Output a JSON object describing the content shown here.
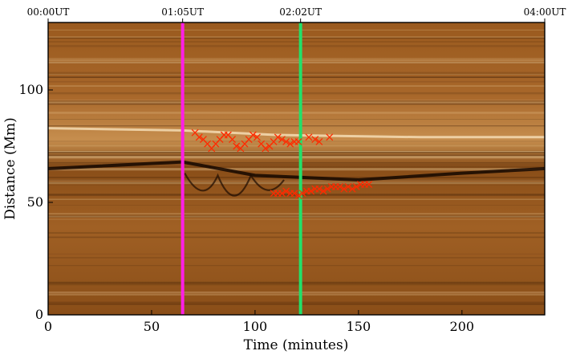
{
  "chart_data": {
    "type": "scatter",
    "title": "",
    "xlabel": "Time (minutes)",
    "ylabel": "Distance (Mm)",
    "xlim": [
      0,
      240
    ],
    "ylim": [
      0,
      130
    ],
    "x_ticks": [
      0,
      50,
      100,
      150,
      200
    ],
    "x_tick_labels": [
      "0",
      "50",
      "100",
      "150",
      "200"
    ],
    "y_ticks": [
      0,
      50,
      100
    ],
    "y_tick_labels": [
      "0",
      "50",
      "100"
    ],
    "top_axis": {
      "ticks": [
        0,
        65,
        122,
        240
      ],
      "labels": [
        "00:00UT",
        "01:05UT",
        "02:02UT",
        "04:00UT"
      ]
    },
    "background": "time-distance image (brown colormap)",
    "vertical_lines": [
      {
        "x": 65,
        "color": "#ff1fe6"
      },
      {
        "x": 122,
        "color": "#22e06a"
      }
    ],
    "grid": false,
    "legend": "none",
    "series": [
      {
        "marker": "x",
        "color": "#ff2a00",
        "x": [
          71,
          73,
          75,
          77,
          79,
          81,
          83,
          85,
          87,
          89,
          91,
          93,
          95,
          97,
          99,
          101,
          103,
          105,
          107,
          109,
          111,
          113,
          115,
          117,
          119,
          121,
          126,
          129,
          131,
          136
        ],
        "y": [
          81,
          79,
          78,
          76,
          74,
          76,
          78,
          80,
          80,
          78,
          75,
          74,
          76,
          78,
          80,
          79,
          76,
          74,
          75,
          77,
          79,
          78,
          77,
          76,
          77,
          77,
          79,
          78,
          77,
          79
        ]
      },
      {
        "marker": "x",
        "color": "#ff2a00",
        "x": [
          109,
          111,
          113,
          115,
          117,
          119,
          121,
          123,
          125,
          127,
          129,
          131,
          133,
          135,
          137,
          139,
          141,
          143,
          145,
          147,
          149,
          151,
          153,
          155
        ],
        "y": [
          54,
          54,
          54,
          55,
          54,
          54,
          53,
          54,
          55,
          55,
          56,
          56,
          55,
          56,
          57,
          57,
          57,
          56,
          57,
          56,
          57,
          58,
          58,
          58
        ]
      }
    ]
  }
}
